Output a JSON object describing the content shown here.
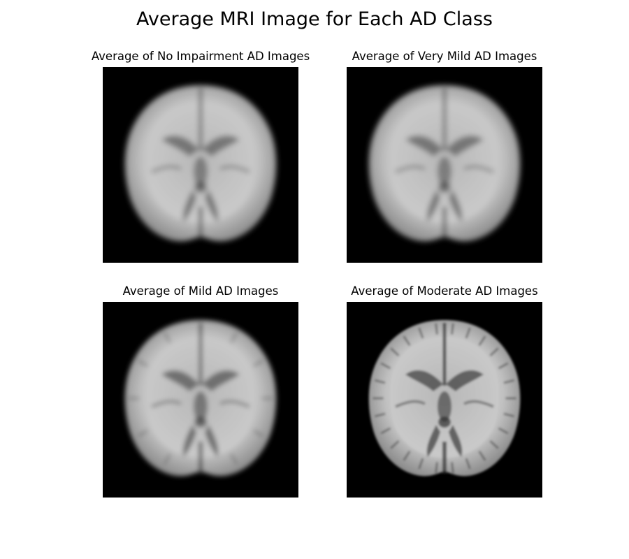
{
  "figure": {
    "title": "Average MRI Image for Each AD Class",
    "panels": [
      {
        "title": "Average of No Impairment AD Images"
      },
      {
        "title": "Average of Very Mild AD Images"
      },
      {
        "title": "Average of Mild AD Images"
      },
      {
        "title": "Average of Moderate AD Images"
      }
    ]
  },
  "colors": {
    "background": "#ffffff",
    "image_background": "#000000",
    "brain_tissue": "#bdbdbd",
    "ventricles": "#3a3a3a"
  }
}
